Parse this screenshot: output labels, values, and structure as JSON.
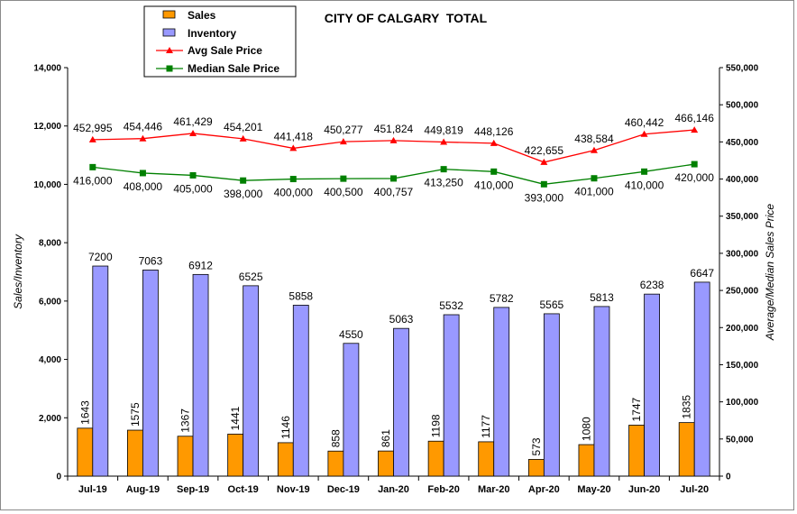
{
  "chart_data": {
    "type": "bar",
    "title": "CITY OF CALGARY  TOTAL",
    "ylabel_left": "Sales/Inventory",
    "ylabel_right": "Average/Median Sales Price",
    "ylim_left": [
      0,
      14000
    ],
    "ylim_right": [
      0,
      550000
    ],
    "yticks_left": [
      "0",
      "2,000",
      "4,000",
      "6,000",
      "8,000",
      "10,000",
      "12,000",
      "14,000"
    ],
    "yticks_right": [
      "0",
      "50,000",
      "100,000",
      "150,000",
      "200,000",
      "250,000",
      "300,000",
      "350,000",
      "400,000",
      "450,000",
      "500,000",
      "550,000"
    ],
    "categories": [
      "Jul-19",
      "Aug-19",
      "Sep-19",
      "Oct-19",
      "Nov-19",
      "Dec-19",
      "Jan-20",
      "Feb-20",
      "Mar-20",
      "Apr-20",
      "May-20",
      "Jun-20",
      "Jul-20"
    ],
    "series": [
      {
        "name": "Sales",
        "kind": "bar",
        "axis": "left",
        "color": "#FF9900",
        "values": [
          1643,
          1575,
          1367,
          1441,
          1146,
          858,
          861,
          1198,
          1177,
          573,
          1080,
          1747,
          1835
        ]
      },
      {
        "name": "Inventory",
        "kind": "bar",
        "axis": "left",
        "color": "#9999FF",
        "values": [
          7200,
          7063,
          6912,
          6525,
          5858,
          4550,
          5063,
          5532,
          5782,
          5565,
          5813,
          6238,
          6647
        ]
      },
      {
        "name": "Avg Sale Price",
        "kind": "line",
        "axis": "right",
        "color": "#FF0000",
        "marker": "triangle",
        "values": [
          452995,
          454446,
          461429,
          454201,
          441418,
          450277,
          451824,
          449819,
          448126,
          422655,
          438584,
          460442,
          466146
        ],
        "labels": [
          "452,995",
          "454,446",
          "461,429",
          "454,201",
          "441,418",
          "450,277",
          "451,824",
          "449,819",
          "448,126",
          "422,655",
          "438,584",
          "460,442",
          "466,146"
        ]
      },
      {
        "name": "Median Sale Price",
        "kind": "line",
        "axis": "right",
        "color": "#008000",
        "marker": "square",
        "values": [
          416000,
          408000,
          405000,
          398000,
          400000,
          400500,
          400757,
          413250,
          410000,
          393000,
          401000,
          410000,
          420000
        ],
        "labels": [
          "416,000",
          "408,000",
          "405,000",
          "398,000",
          "400,000",
          "400,500",
          "400,757",
          "413,250",
          "410,000",
          "393,000",
          "401,000",
          "410,000",
          "420,000"
        ]
      }
    ],
    "legend": {
      "placement": "top-left",
      "items": [
        "Sales",
        "Inventory",
        "Avg Sale Price",
        "Median Sale Price"
      ]
    },
    "grid": false
  }
}
